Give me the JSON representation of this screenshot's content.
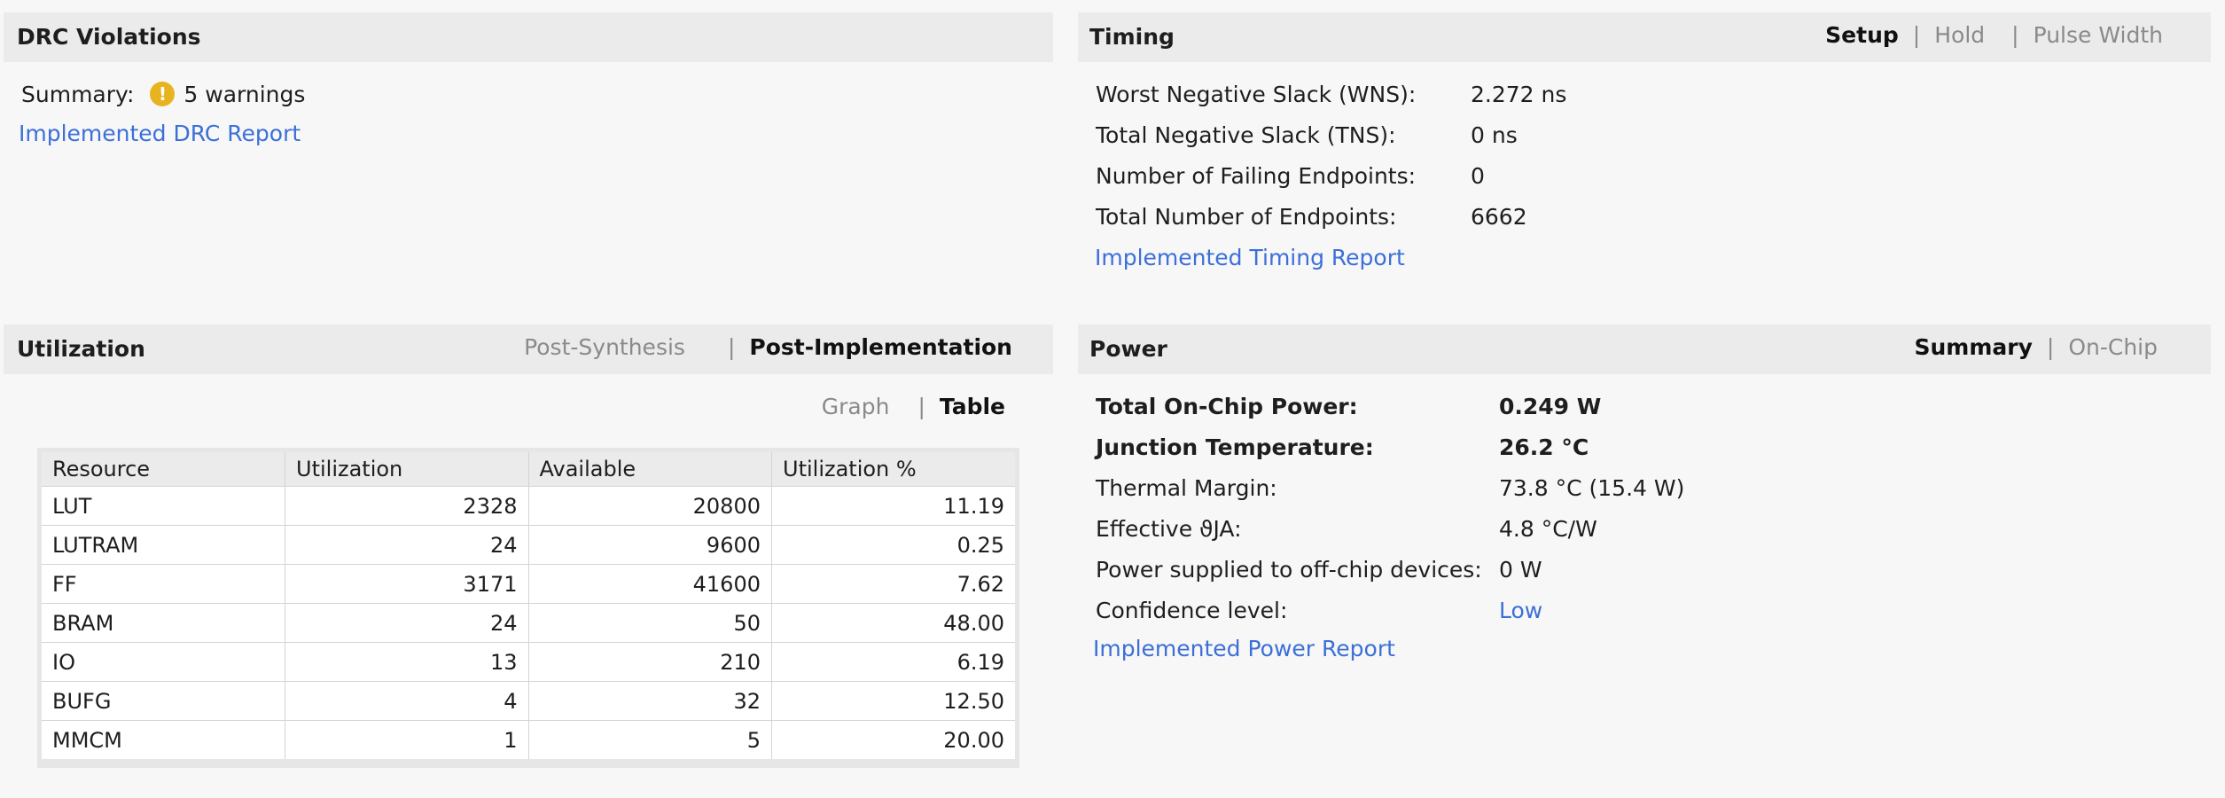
{
  "drc": {
    "title": "DRC Violations",
    "summary_label": "Summary:",
    "warning_icon": "warning-icon",
    "warning_icon_glyph": "!",
    "warning_text": "5 warnings",
    "report_link": "Implemented DRC Report"
  },
  "timing": {
    "title": "Timing",
    "tabs": [
      {
        "label": "Setup",
        "active": true
      },
      {
        "label": "Hold",
        "active": false
      },
      {
        "label": "Pulse Width",
        "active": false
      }
    ],
    "rows": [
      {
        "label": "Worst Negative Slack (WNS):",
        "value": "2.272 ns"
      },
      {
        "label": "Total Negative Slack (TNS):",
        "value": "0 ns"
      },
      {
        "label": "Number of Failing Endpoints:",
        "value": "0"
      },
      {
        "label": "Total Number of Endpoints:",
        "value": "6662"
      }
    ],
    "report_link": "Implemented Timing Report"
  },
  "utilization": {
    "title": "Utilization",
    "tabs": [
      {
        "label": "Post-Synthesis",
        "active": false
      },
      {
        "label": "Post-Implementation",
        "active": true
      }
    ],
    "view_tabs": [
      {
        "label": "Graph",
        "active": false
      },
      {
        "label": "Table",
        "active": true
      }
    ],
    "columns": [
      "Resource",
      "Utilization",
      "Available",
      "Utilization %"
    ],
    "rows": [
      [
        "LUT",
        "2328",
        "20800",
        "11.19"
      ],
      [
        "LUTRAM",
        "24",
        "9600",
        "0.25"
      ],
      [
        "FF",
        "3171",
        "41600",
        "7.62"
      ],
      [
        "BRAM",
        "24",
        "50",
        "48.00"
      ],
      [
        "IO",
        "13",
        "210",
        "6.19"
      ],
      [
        "BUFG",
        "4",
        "32",
        "12.50"
      ],
      [
        "MMCM",
        "1",
        "5",
        "20.00"
      ]
    ]
  },
  "power": {
    "title": "Power",
    "tabs": [
      {
        "label": "Summary",
        "active": true
      },
      {
        "label": "On-Chip",
        "active": false
      }
    ],
    "rows": [
      {
        "label": "Total On-Chip Power:",
        "value": "0.249 W",
        "bold": true
      },
      {
        "label": "Junction Temperature:",
        "value": "26.2 °C",
        "bold": true
      },
      {
        "label": "Thermal Margin:",
        "value": "73.8 °C (15.4 W)",
        "bold": false
      },
      {
        "label": "Effective ϑJA:",
        "value": "4.8 °C/W",
        "bold": false
      },
      {
        "label": "Power supplied to off-chip devices:",
        "value": "0 W",
        "bold": false
      },
      {
        "label": "Confidence level:",
        "value": "Low",
        "bold": false,
        "link": true
      }
    ],
    "report_link": "Implemented Power Report"
  },
  "colors": {
    "link": "#3c6fd8",
    "header_bg": "#ebebeb",
    "warning": "#e7b420"
  }
}
